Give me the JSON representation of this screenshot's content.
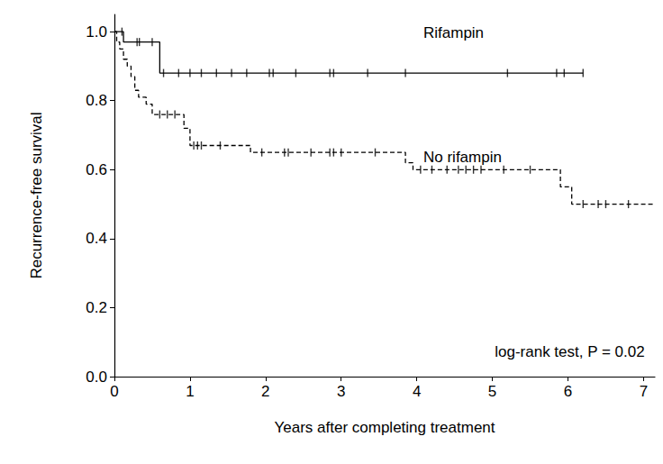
{
  "chart_data": {
    "type": "kaplan-meier",
    "x_label": "Years after completing treatment",
    "y_label": "Recurrence-free survival",
    "annotations": [
      "log-rank test, P = 0.02"
    ],
    "xlim": [
      0,
      7.15
    ],
    "xticks": [
      0,
      1,
      2,
      3,
      4,
      5,
      6,
      7
    ],
    "ylim": [
      0,
      1.05
    ],
    "yticks": [
      {
        "value": 0,
        "label": "0.0"
      },
      {
        "value": 0.2,
        "label": "0.2"
      },
      {
        "value": 0.4,
        "label": "0.4"
      },
      {
        "value": 0.6,
        "label": "0.6"
      },
      {
        "value": 0.8,
        "label": "0.8"
      },
      {
        "value": 1.0,
        "label": "1.0"
      }
    ],
    "grid": false,
    "series": [
      {
        "name": "Rifampin",
        "color": "#000000",
        "line_style": "solid",
        "marker": "vline",
        "x": [
          0,
          0.12,
          0.6,
          6.2
        ],
        "values": [
          1.0,
          0.97,
          0.88,
          0.88
        ],
        "censored_times": [
          0.1,
          0.3,
          0.33,
          0.5,
          0.65,
          0.85,
          1.0,
          1.15,
          1.35,
          1.55,
          1.75,
          2.05,
          2.1,
          2.4,
          2.85,
          2.9,
          3.35,
          3.85,
          5.2,
          5.85,
          5.95,
          6.2
        ]
      },
      {
        "name": "No rifampin",
        "color": "#000000",
        "line_style": "dashed",
        "marker": "vline",
        "x": [
          0,
          0.03,
          0.07,
          0.12,
          0.17,
          0.22,
          0.27,
          0.32,
          0.42,
          0.5,
          0.92,
          1.0,
          1.8,
          3.85,
          3.95,
          5.9,
          6.05,
          7.15
        ],
        "values": [
          1.0,
          0.97,
          0.95,
          0.92,
          0.9,
          0.87,
          0.83,
          0.81,
          0.79,
          0.76,
          0.72,
          0.67,
          0.65,
          0.62,
          0.6,
          0.55,
          0.5,
          0.5
        ],
        "censored_times": [
          0.6,
          0.7,
          0.8,
          1.05,
          1.1,
          1.15,
          1.4,
          1.95,
          2.25,
          2.3,
          2.6,
          2.85,
          2.9,
          3.0,
          3.45,
          4.05,
          4.2,
          4.4,
          4.55,
          4.65,
          4.75,
          4.85,
          5.15,
          5.5,
          6.2,
          6.4,
          6.5,
          6.8
        ]
      }
    ]
  }
}
